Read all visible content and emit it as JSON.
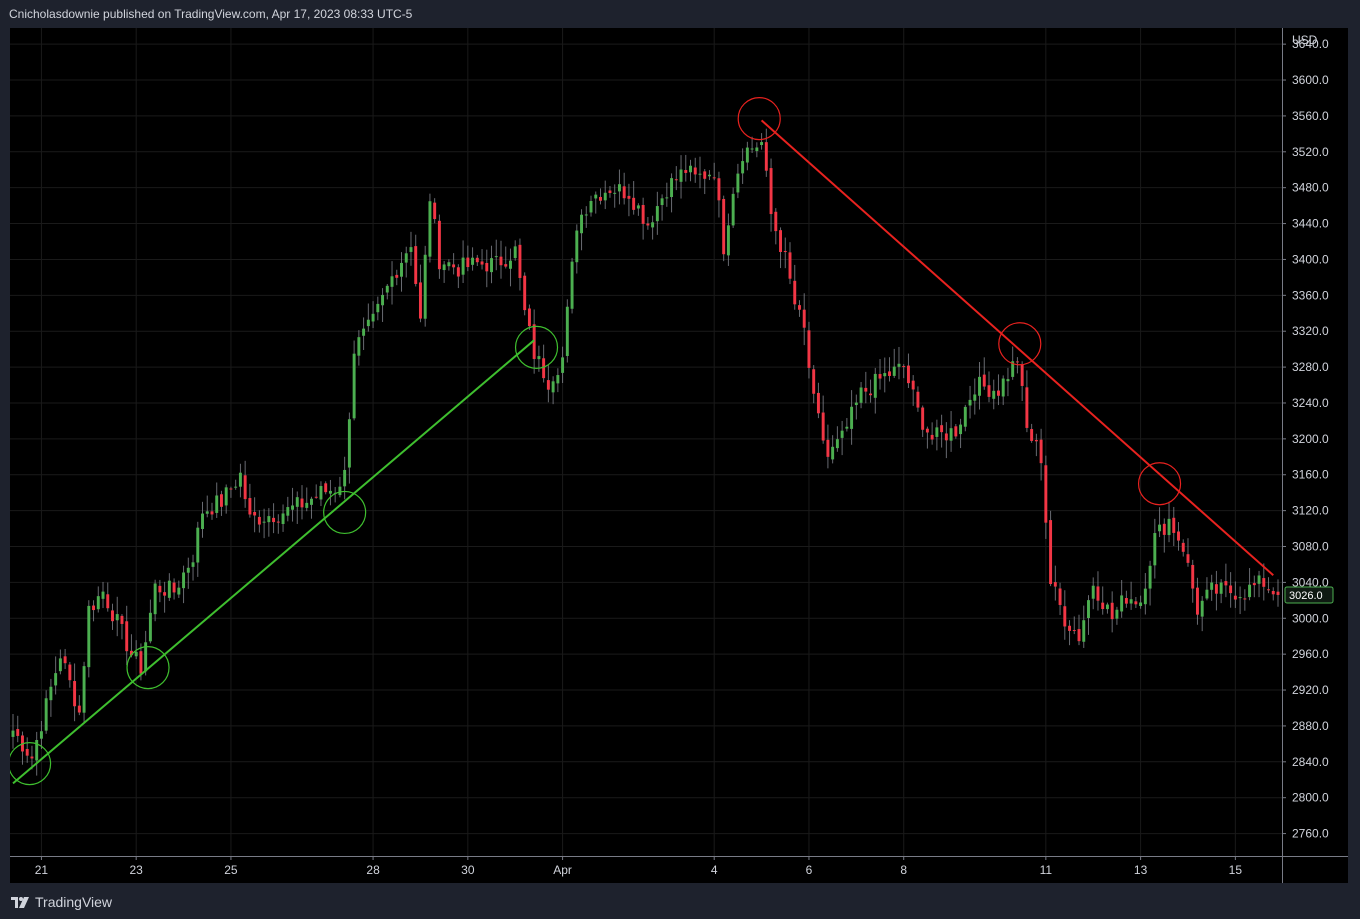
{
  "header": {
    "publisher_text": "Cnicholasdownie published on TradingView.com, Apr 17, 2023 08:33 UTC-5"
  },
  "footer": {
    "brand": "TradingView"
  },
  "colors": {
    "background": "#000000",
    "up": "#4caf50",
    "down": "#f23645",
    "grid": "#1a1a1a",
    "trendline_up": "#3fbf2f",
    "trendline_down": "#e8221f",
    "price_tag_bg": "#22ab94"
  },
  "chart_data": {
    "type": "candlestick",
    "symbol_currency": "USD",
    "last_price": "3026.0",
    "y_axis": {
      "range": [
        2735,
        3658
      ],
      "ticks": [
        "3640.0",
        "3600.0",
        "3560.0",
        "3520.0",
        "3480.0",
        "3440.0",
        "3400.0",
        "3360.0",
        "3320.0",
        "3280.0",
        "3240.0",
        "3200.0",
        "3160.0",
        "3120.0",
        "3080.0",
        "3040.0",
        "3000.0",
        "2960.0",
        "2920.0",
        "2880.0",
        "2840.0",
        "2800.0",
        "2760.0"
      ]
    },
    "x_axis": {
      "bars_visible": 268,
      "ticks": [
        {
          "label": "21",
          "bar": 6
        },
        {
          "label": "23",
          "bar": 26
        },
        {
          "label": "25",
          "bar": 46
        },
        {
          "label": "28",
          "bar": 76
        },
        {
          "label": "30",
          "bar": 96
        },
        {
          "label": "Apr",
          "bar": 116
        },
        {
          "label": "4",
          "bar": 148
        },
        {
          "label": "6",
          "bar": 168
        },
        {
          "label": "8",
          "bar": 188
        },
        {
          "label": "11",
          "bar": 218
        },
        {
          "label": "13",
          "bar": 238
        },
        {
          "label": "15",
          "bar": 258
        }
      ]
    },
    "anchors": [
      [
        0,
        2875
      ],
      [
        4,
        2845
      ],
      [
        10,
        2960
      ],
      [
        14,
        2895
      ],
      [
        16,
        3010
      ],
      [
        19,
        3030
      ],
      [
        22,
        2995
      ],
      [
        25,
        2960
      ],
      [
        27,
        2945
      ],
      [
        30,
        3035
      ],
      [
        34,
        3030
      ],
      [
        38,
        3070
      ],
      [
        40,
        3120
      ],
      [
        44,
        3130
      ],
      [
        48,
        3160
      ],
      [
        50,
        3110
      ],
      [
        54,
        3115
      ],
      [
        58,
        3120
      ],
      [
        62,
        3130
      ],
      [
        65,
        3140
      ],
      [
        68,
        3145
      ],
      [
        70,
        3160
      ],
      [
        72,
        3300
      ],
      [
        76,
        3330
      ],
      [
        80,
        3380
      ],
      [
        84,
        3420
      ],
      [
        86,
        3330
      ],
      [
        88,
        3470
      ],
      [
        90,
        3400
      ],
      [
        94,
        3390
      ],
      [
        98,
        3395
      ],
      [
        102,
        3395
      ],
      [
        106,
        3410
      ],
      [
        108,
        3340
      ],
      [
        110,
        3295
      ],
      [
        113,
        3265
      ],
      [
        116,
        3290
      ],
      [
        119,
        3440
      ],
      [
        122,
        3470
      ],
      [
        126,
        3480
      ],
      [
        130,
        3475
      ],
      [
        134,
        3440
      ],
      [
        138,
        3480
      ],
      [
        142,
        3500
      ],
      [
        144,
        3490
      ],
      [
        148,
        3500
      ],
      [
        150,
        3415
      ],
      [
        152,
        3480
      ],
      [
        154,
        3520
      ],
      [
        158,
        3530
      ],
      [
        160,
        3450
      ],
      [
        163,
        3400
      ],
      [
        165,
        3350
      ],
      [
        167,
        3320
      ],
      [
        169,
        3240
      ],
      [
        172,
        3180
      ],
      [
        175,
        3200
      ],
      [
        179,
        3250
      ],
      [
        184,
        3270
      ],
      [
        188,
        3280
      ],
      [
        191,
        3230
      ],
      [
        194,
        3200
      ],
      [
        199,
        3210
      ],
      [
        203,
        3260
      ],
      [
        208,
        3255
      ],
      [
        212,
        3290
      ],
      [
        214,
        3210
      ],
      [
        217,
        3180
      ],
      [
        219,
        3040
      ],
      [
        222,
        3000
      ],
      [
        225,
        2980
      ],
      [
        228,
        3040
      ],
      [
        232,
        3000
      ],
      [
        235,
        3025
      ],
      [
        238,
        3020
      ],
      [
        241,
        3090
      ],
      [
        244,
        3110
      ],
      [
        247,
        3080
      ],
      [
        250,
        3010
      ],
      [
        253,
        3030
      ],
      [
        257,
        3030
      ],
      [
        260,
        3030
      ],
      [
        264,
        3040
      ],
      [
        267,
        3026
      ]
    ],
    "trendlines": [
      {
        "name": "support",
        "color": "#3fbf2f",
        "from": {
          "bar": 0,
          "price": 2816
        },
        "to": {
          "bar": 110,
          "price": 3310
        }
      },
      {
        "name": "resistance",
        "color": "#e8221f",
        "from": {
          "bar": 158,
          "price": 3555
        },
        "to": {
          "bar": 266,
          "price": 3048
        }
      }
    ],
    "touch_circles": [
      {
        "color": "#3fbf2f",
        "bar": 3.5,
        "price": 2838
      },
      {
        "color": "#3fbf2f",
        "bar": 28.5,
        "price": 2945
      },
      {
        "color": "#3fbf2f",
        "bar": 70,
        "price": 3118
      },
      {
        "color": "#3fbf2f",
        "bar": 110.5,
        "price": 3302
      },
      {
        "color": "#e8221f",
        "bar": 157.5,
        "price": 3557
      },
      {
        "color": "#e8221f",
        "bar": 212.5,
        "price": 3306
      },
      {
        "color": "#e8221f",
        "bar": 242,
        "price": 3150
      }
    ]
  }
}
